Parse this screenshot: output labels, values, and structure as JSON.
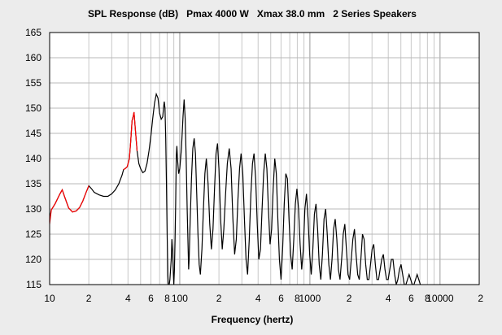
{
  "window": {
    "background": "#ececec",
    "plot_background": "#ffffff"
  },
  "chart_data": {
    "type": "line",
    "title": "SPL Response (dB)   Pmax 4000 W   Xmax 38.0 mm   2 Series Speakers",
    "xlabel": "Frequency (hertz)",
    "ylabel": "",
    "x_scale": "log",
    "xlim": [
      10,
      20000
    ],
    "ylim": [
      115,
      165
    ],
    "grid": true,
    "legend": "none",
    "y_ticks": [
      "165",
      "160",
      "155",
      "150",
      "145",
      "140",
      "135",
      "130",
      "125",
      "120",
      "115"
    ],
    "x_ticks": [
      {
        "value": 10,
        "label": "10"
      },
      {
        "value": 20,
        "label": "2"
      },
      {
        "value": 40,
        "label": "4"
      },
      {
        "value": 60,
        "label": "6"
      },
      {
        "value": 80,
        "label": "8"
      },
      {
        "value": 100,
        "label": "100"
      },
      {
        "value": 200,
        "label": "2"
      },
      {
        "value": 400,
        "label": "4"
      },
      {
        "value": 600,
        "label": "6"
      },
      {
        "value": 800,
        "label": "8"
      },
      {
        "value": 1000,
        "label": "1000"
      },
      {
        "value": 2000,
        "label": "2"
      },
      {
        "value": 4000,
        "label": "4"
      },
      {
        "value": 6000,
        "label": "6"
      },
      {
        "value": 8000,
        "label": "8"
      },
      {
        "value": 10000,
        "label": "10000"
      },
      {
        "value": 20000,
        "label": "2"
      }
    ],
    "series": [
      {
        "color": "#000000",
        "points": [
          [
            10,
            128
          ],
          [
            10.3,
            129.8
          ],
          [
            11,
            131
          ],
          [
            12,
            133
          ],
          [
            12.5,
            133.8
          ],
          [
            13,
            132.5
          ],
          [
            14,
            130.2
          ],
          [
            15,
            129.4
          ],
          [
            16,
            129.6
          ],
          [
            17,
            130.3
          ],
          [
            18,
            131.6
          ],
          [
            19,
            133.2
          ],
          [
            20,
            134.6
          ],
          [
            21,
            134
          ],
          [
            22,
            133.3
          ],
          [
            24,
            132.8
          ],
          [
            26,
            132.5
          ],
          [
            28,
            132.5
          ],
          [
            30,
            133
          ],
          [
            32,
            133.8
          ],
          [
            34,
            135
          ],
          [
            36,
            136.7
          ],
          [
            37,
            137.8
          ],
          [
            38,
            138
          ],
          [
            39.5,
            138.4
          ],
          [
            41,
            140
          ],
          [
            42,
            143.5
          ],
          [
            43,
            147.5
          ],
          [
            44,
            148.5
          ],
          [
            44.5,
            149.2
          ],
          [
            45.5,
            146
          ],
          [
            47,
            141.5
          ],
          [
            48.5,
            139
          ],
          [
            50,
            138
          ],
          [
            52,
            137.2
          ],
          [
            54,
            137.5
          ],
          [
            56,
            139
          ],
          [
            58,
            141.5
          ],
          [
            60,
            144.5
          ],
          [
            62,
            148
          ],
          [
            64,
            151
          ],
          [
            66,
            152.8
          ],
          [
            68,
            152
          ],
          [
            70,
            149
          ],
          [
            72,
            147.8
          ],
          [
            74,
            148.3
          ],
          [
            75,
            150
          ],
          [
            76,
            151.3
          ],
          [
            77,
            150
          ],
          [
            78,
            144
          ],
          [
            79,
            135
          ],
          [
            80,
            125
          ],
          [
            81,
            117
          ],
          [
            82,
            114
          ],
          [
            84,
            116
          ],
          [
            86,
            120
          ],
          [
            87,
            124
          ],
          [
            88,
            122
          ],
          [
            89,
            118
          ],
          [
            90,
            115
          ],
          [
            91,
            118
          ],
          [
            92,
            124
          ],
          [
            93,
            131
          ],
          [
            94,
            140.5
          ],
          [
            95,
            142.5
          ],
          [
            96,
            140
          ],
          [
            98,
            137
          ],
          [
            100,
            138
          ],
          [
            103,
            142
          ],
          [
            106,
            148.5
          ],
          [
            108,
            151.7
          ],
          [
            110,
            148
          ],
          [
            112,
            140
          ],
          [
            114,
            130
          ],
          [
            116,
            122
          ],
          [
            117,
            118
          ],
          [
            118,
            120
          ],
          [
            120,
            127
          ],
          [
            123,
            136
          ],
          [
            126,
            142
          ],
          [
            129,
            144
          ],
          [
            132,
            141
          ],
          [
            135,
            133
          ],
          [
            138,
            125
          ],
          [
            141,
            119
          ],
          [
            144,
            117
          ],
          [
            148,
            122
          ],
          [
            152,
            130
          ],
          [
            156,
            137
          ],
          [
            160,
            140
          ],
          [
            165,
            135
          ],
          [
            170,
            127
          ],
          [
            175,
            122
          ],
          [
            180,
            126
          ],
          [
            185,
            134
          ],
          [
            190,
            141
          ],
          [
            195,
            143
          ],
          [
            200,
            138
          ],
          [
            206,
            128
          ],
          [
            212,
            122
          ],
          [
            218,
            126
          ],
          [
            225,
            133
          ],
          [
            232,
            139
          ],
          [
            240,
            142
          ],
          [
            248,
            138
          ],
          [
            256,
            128
          ],
          [
            264,
            121
          ],
          [
            272,
            124
          ],
          [
            280,
            132
          ],
          [
            288,
            138
          ],
          [
            296,
            141
          ],
          [
            305,
            137
          ],
          [
            314,
            128
          ],
          [
            323,
            120
          ],
          [
            332,
            117
          ],
          [
            342,
            124
          ],
          [
            352,
            133
          ],
          [
            362,
            139
          ],
          [
            372,
            141
          ],
          [
            383,
            136
          ],
          [
            394,
            127
          ],
          [
            405,
            120
          ],
          [
            417,
            122
          ],
          [
            429,
            130
          ],
          [
            441,
            137
          ],
          [
            454,
            141
          ],
          [
            467,
            138
          ],
          [
            480,
            130
          ],
          [
            494,
            123
          ],
          [
            508,
            126
          ],
          [
            522,
            134
          ],
          [
            537,
            140
          ],
          [
            552,
            137
          ],
          [
            567,
            128
          ],
          [
            583,
            120
          ],
          [
            600,
            116
          ],
          [
            617,
            122
          ],
          [
            635,
            131
          ],
          [
            653,
            137
          ],
          [
            672,
            136
          ],
          [
            691,
            128
          ],
          [
            711,
            121
          ],
          [
            731,
            118
          ],
          [
            752,
            124
          ],
          [
            773,
            131
          ],
          [
            795,
            134
          ],
          [
            818,
            130
          ],
          [
            841,
            123
          ],
          [
            865,
            118
          ],
          [
            890,
            122
          ],
          [
            915,
            130
          ],
          [
            941,
            133
          ],
          [
            968,
            128
          ],
          [
            996,
            121
          ],
          [
            1024,
            117
          ],
          [
            1053,
            122
          ],
          [
            1083,
            129
          ],
          [
            1114,
            131
          ],
          [
            1146,
            126
          ],
          [
            1179,
            119
          ],
          [
            1213,
            116
          ],
          [
            1248,
            121
          ],
          [
            1284,
            128
          ],
          [
            1321,
            130
          ],
          [
            1359,
            125
          ],
          [
            1398,
            119
          ],
          [
            1438,
            116
          ],
          [
            1479,
            120
          ],
          [
            1521,
            126
          ],
          [
            1565,
            128
          ],
          [
            1610,
            124
          ],
          [
            1656,
            118
          ],
          [
            1704,
            116
          ],
          [
            1753,
            120
          ],
          [
            1803,
            125
          ],
          [
            1855,
            127
          ],
          [
            1908,
            122
          ],
          [
            1963,
            117
          ],
          [
            2020,
            116
          ],
          [
            2078,
            120
          ],
          [
            2138,
            124
          ],
          [
            2200,
            126
          ],
          [
            2263,
            121
          ],
          [
            2328,
            117
          ],
          [
            2395,
            116
          ],
          [
            2464,
            120
          ],
          [
            2535,
            125
          ],
          [
            2608,
            124
          ],
          [
            2683,
            119
          ],
          [
            2760,
            116
          ],
          [
            2840,
            116
          ],
          [
            2922,
            119
          ],
          [
            3006,
            122
          ],
          [
            3093,
            123
          ],
          [
            3182,
            119
          ],
          [
            3274,
            116
          ],
          [
            3368,
            116
          ],
          [
            3465,
            118
          ],
          [
            3565,
            120
          ],
          [
            3668,
            121
          ],
          [
            3774,
            118
          ],
          [
            3883,
            116
          ],
          [
            3995,
            116
          ],
          [
            4110,
            118
          ],
          [
            4229,
            120
          ],
          [
            4351,
            120
          ],
          [
            4477,
            117
          ],
          [
            4606,
            115
          ],
          [
            4739,
            116
          ],
          [
            4876,
            118
          ],
          [
            5017,
            119
          ],
          [
            5162,
            117
          ],
          [
            5311,
            115
          ],
          [
            5464,
            115
          ],
          [
            5622,
            116
          ],
          [
            5784,
            117
          ],
          [
            5951,
            116
          ],
          [
            6123,
            115
          ],
          [
            6300,
            115
          ],
          [
            6482,
            116
          ],
          [
            6669,
            117
          ],
          [
            6862,
            116
          ],
          [
            7060,
            115
          ]
        ]
      },
      {
        "color": "#ff0000",
        "points": [
          [
            10,
            127
          ],
          [
            10.3,
            129.8
          ],
          [
            11,
            131
          ],
          [
            12,
            133
          ],
          [
            12.5,
            133.8
          ],
          [
            13,
            132.5
          ],
          [
            14,
            130.2
          ],
          [
            15,
            129.4
          ],
          [
            16,
            129.6
          ],
          [
            17,
            130.3
          ],
          [
            18,
            131.6
          ],
          [
            19,
            133.2
          ],
          [
            20,
            134.6
          ]
        ]
      },
      {
        "color": "#ff0000",
        "points": [
          [
            37,
            137.8
          ],
          [
            38,
            138
          ],
          [
            39.5,
            138.4
          ],
          [
            41,
            140
          ],
          [
            42,
            143.5
          ],
          [
            43,
            147.5
          ],
          [
            44,
            148.5
          ],
          [
            44.5,
            149.2
          ],
          [
            45.5,
            146
          ],
          [
            47,
            141.5
          ]
        ]
      }
    ]
  }
}
